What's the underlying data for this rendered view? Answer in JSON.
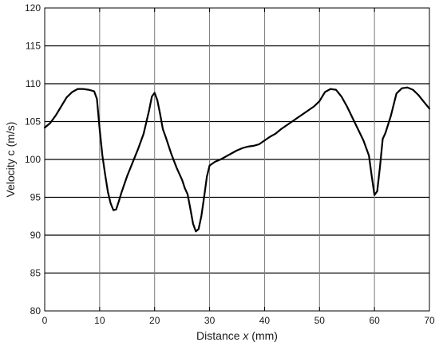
{
  "chart_data": {
    "type": "line",
    "title": "",
    "xlabel_prefix": "Distance ",
    "xlabel_var": "x",
    "xlabel_suffix": " (mm)",
    "ylabel": "Velocity c (m/s)",
    "xlim": [
      0,
      70
    ],
    "ylim": [
      80,
      120
    ],
    "x_ticks": [
      "0",
      "10",
      "20",
      "30",
      "40",
      "50",
      "60",
      "70"
    ],
    "y_ticks": [
      "80",
      "85",
      "90",
      "95",
      "100",
      "105",
      "110",
      "115",
      "120"
    ],
    "grid": true,
    "series": [
      {
        "color": "#000000",
        "x": [
          0,
          1,
          2,
          3,
          4,
          5,
          6,
          7,
          8,
          9,
          9.5,
          10,
          10.5,
          11,
          11.5,
          12,
          12.5,
          13,
          13.5,
          14,
          15,
          16,
          17,
          18,
          19,
          19.5,
          20,
          20.5,
          21,
          21.5,
          22,
          23,
          24,
          25,
          25.5,
          26,
          26.5,
          27,
          27.5,
          28,
          28.5,
          29,
          29.5,
          30,
          31,
          32,
          33,
          34,
          35,
          36,
          37,
          38,
          39,
          40,
          41,
          42,
          43,
          44,
          45,
          46,
          47,
          48,
          49,
          50,
          51,
          52,
          53,
          54,
          55,
          56,
          57,
          58,
          59,
          59.5,
          60,
          60.5,
          61,
          61.5,
          62,
          63,
          64,
          65,
          66,
          67,
          68,
          69,
          70
        ],
        "y": [
          104.2,
          104.8,
          105.8,
          107.0,
          108.2,
          108.9,
          109.3,
          109.3,
          109.2,
          109.0,
          108.0,
          104.0,
          100.5,
          98.0,
          95.7,
          94.2,
          93.3,
          93.4,
          94.5,
          95.7,
          97.8,
          99.6,
          101.4,
          103.4,
          106.5,
          108.3,
          108.8,
          107.8,
          106.0,
          104.0,
          103.0,
          100.8,
          98.9,
          97.3,
          96.2,
          95.4,
          93.5,
          91.5,
          90.5,
          90.8,
          92.5,
          95.0,
          97.7,
          99.2,
          99.7,
          100.0,
          100.4,
          100.8,
          101.2,
          101.5,
          101.7,
          101.8,
          102.0,
          102.5,
          103.0,
          103.4,
          104.0,
          104.5,
          105.0,
          105.5,
          106.0,
          106.5,
          107.0,
          107.7,
          108.9,
          109.3,
          109.2,
          108.3,
          107.0,
          105.5,
          104.0,
          102.5,
          100.5,
          97.8,
          95.3,
          95.8,
          99.0,
          102.7,
          103.5,
          105.8,
          108.7,
          109.4,
          109.5,
          109.2,
          108.5,
          107.6,
          106.7
        ]
      }
    ]
  }
}
